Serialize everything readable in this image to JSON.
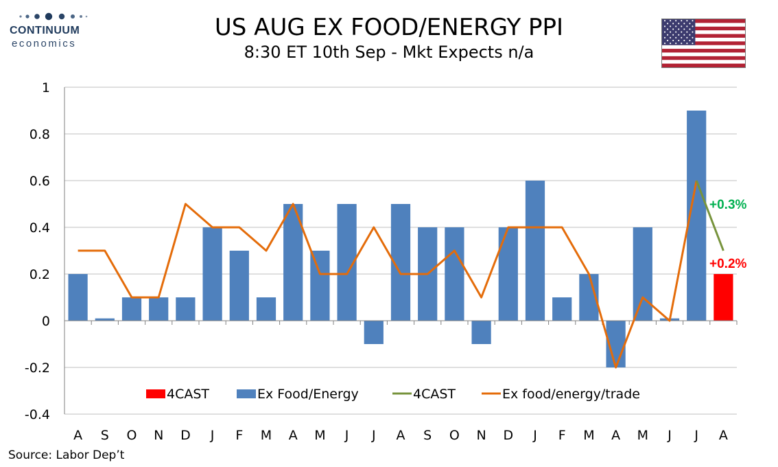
{
  "header": {
    "logo_word": "CONTINUUM",
    "logo_sub": "economics",
    "title": "US AUG EX FOOD/ENERGY PPI",
    "subtitle": "8:30 ET 10th Sep - Mkt Expects n/a",
    "flag_icon": "us-flag-icon"
  },
  "footer": {
    "source": "Source: Labor Dep’t"
  },
  "colors": {
    "bar": "#4f81bd",
    "forecast_bar": "#ff0000",
    "trade_line": "#e46c0a",
    "forecast_line": "#77933c",
    "forecast_high_label": "#00b050",
    "forecast_low_label": "#ff0000"
  },
  "chart_data": {
    "type": "bar",
    "categories": [
      "A",
      "S",
      "O",
      "N",
      "D",
      "J",
      "F",
      "M",
      "A",
      "M",
      "J",
      "J",
      "A",
      "S",
      "O",
      "N",
      "D",
      "J",
      "F",
      "M",
      "A",
      "M",
      "J",
      "J",
      "A"
    ],
    "ylim": [
      -0.4,
      1
    ],
    "yticks": [
      "1",
      "0.8",
      "0.6",
      "0.4",
      "0.2",
      "0",
      "-0.2",
      "-0.4"
    ],
    "ytick_values": [
      1,
      0.8,
      0.6,
      0.4,
      0.2,
      0,
      -0.2,
      -0.4
    ],
    "grid": true,
    "series": [
      {
        "name": "Ex Food/Energy",
        "kind": "bar",
        "values": [
          0.2,
          0.01,
          0.1,
          0.1,
          0.1,
          0.4,
          0.3,
          0.1,
          0.5,
          0.3,
          0.5,
          -0.1,
          0.5,
          0.4,
          0.4,
          -0.1,
          0.4,
          0.6,
          0.1,
          0.2,
          -0.2,
          0.4,
          0.01,
          0.9,
          null
        ]
      },
      {
        "name": "4CAST",
        "kind": "bar",
        "values": [
          null,
          null,
          null,
          null,
          null,
          null,
          null,
          null,
          null,
          null,
          null,
          null,
          null,
          null,
          null,
          null,
          null,
          null,
          null,
          null,
          null,
          null,
          null,
          null,
          0.2
        ]
      },
      {
        "name": "Ex food/energy/trade",
        "kind": "line",
        "values": [
          0.3,
          0.3,
          0.1,
          0.1,
          0.5,
          0.4,
          0.4,
          0.3,
          0.5,
          0.2,
          0.2,
          0.4,
          0.2,
          0.2,
          0.3,
          0.1,
          0.4,
          0.4,
          0.4,
          0.2,
          -0.2,
          0.1,
          0.0,
          0.6,
          null
        ]
      },
      {
        "name": "4CAST",
        "kind": "line",
        "values": [
          null,
          null,
          null,
          null,
          null,
          null,
          null,
          null,
          null,
          null,
          null,
          null,
          null,
          null,
          null,
          null,
          null,
          null,
          null,
          null,
          null,
          null,
          null,
          0.6,
          0.3
        ]
      }
    ],
    "legend": {
      "placement": "bottom-inside",
      "entries": [
        {
          "label": "4CAST",
          "symbol": "box",
          "color": "#ff0000"
        },
        {
          "label": "Ex Food/Energy",
          "symbol": "box",
          "color": "#4f81bd"
        },
        {
          "label": "4CAST",
          "symbol": "line",
          "color": "#77933c"
        },
        {
          "label": "Ex food/energy/trade",
          "symbol": "line",
          "color": "#e46c0a"
        }
      ]
    },
    "annotations": [
      {
        "text": "+0.3%",
        "x_index": 24,
        "y": 0.5,
        "color": "#00b050"
      },
      {
        "text": "+0.2%",
        "x_index": 24,
        "y": 0.25,
        "color": "#ff0000"
      }
    ]
  }
}
